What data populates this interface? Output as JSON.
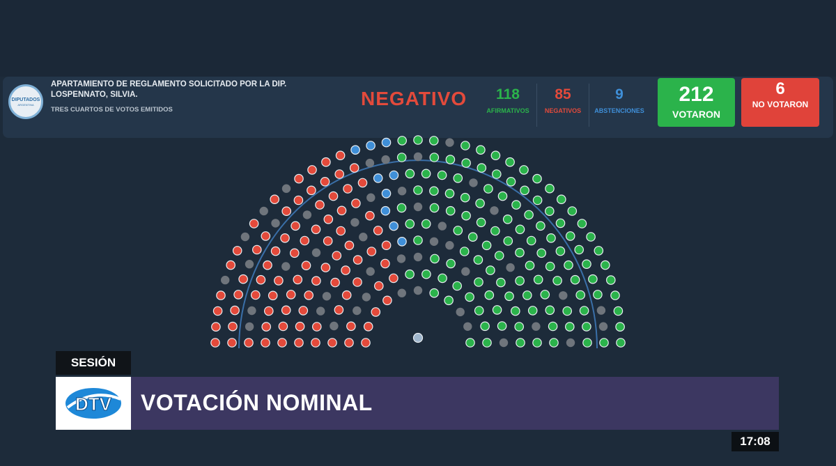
{
  "header": {
    "logo_text": "DIPUTADOS",
    "logo_sub": "ARGENTINA",
    "motion_title": "APARTAMIENTO DE REGLAMENTO SOLICITADO POR LA DIP. LOSPENNATO, SILVIA.",
    "motion_subtitle": "TRES CUARTOS DE VOTOS EMITIDOS",
    "result": "NEGATIVO",
    "counts": {
      "affirmative": {
        "value": "118",
        "label": "AFIRMATIVOS"
      },
      "negative": {
        "value": "85",
        "label": "NEGATIVOS"
      },
      "abstentions": {
        "value": "9",
        "label": "ABSTENCIONES"
      }
    },
    "voted": {
      "value": "212",
      "label": "VOTARON"
    },
    "not_voted": {
      "value": "6",
      "label": "NO VOTARON"
    }
  },
  "chamber": {
    "total_seats": 257,
    "affirmative": 118,
    "negative": 85,
    "abstentions": 9,
    "absent": 45
  },
  "lower_third": {
    "section": "SESIÓN",
    "title": "VOTACIÓN NOMINAL",
    "channel": "DTV",
    "time": "17:08"
  },
  "colors": {
    "affirmative": "#2bb34b",
    "negative": "#e34a3b",
    "abstention": "#3f8fd8",
    "absent": "#6f757c",
    "background": "#1d2b3a"
  }
}
